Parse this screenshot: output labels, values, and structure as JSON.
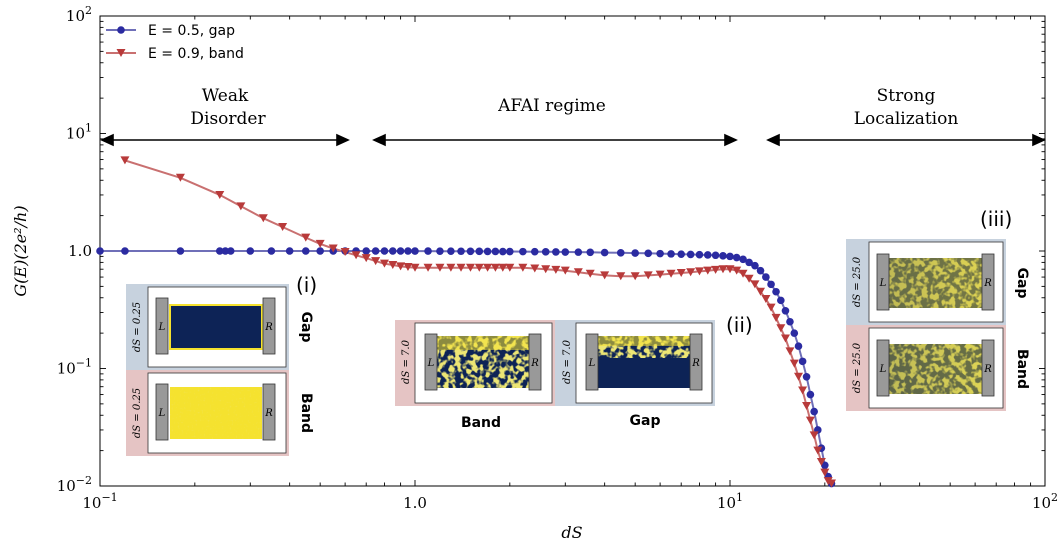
{
  "chart_data": {
    "type": "line",
    "xscale": "log",
    "yscale": "log",
    "xlim": [
      0.1,
      100
    ],
    "ylim": [
      0.01,
      100
    ],
    "xlabel": "dS",
    "ylabel": "G(E)(2e²/h)",
    "grid": false,
    "legend_position": "top-left",
    "x_ticks": [
      {
        "value": 0.1,
        "mantissa": "10",
        "exp": "−1"
      },
      {
        "value": 1,
        "label": "1.0"
      },
      {
        "value": 10,
        "mantissa": "10",
        "exp": "1"
      },
      {
        "value": 100,
        "mantissa": "10",
        "exp": "2"
      }
    ],
    "y_ticks": [
      {
        "value": 0.01,
        "mantissa": "10",
        "exp": "−2"
      },
      {
        "value": 0.1,
        "mantissa": "10",
        "exp": "−1"
      },
      {
        "value": 1,
        "label": "1.0"
      },
      {
        "value": 10,
        "mantissa": "10",
        "exp": "1"
      },
      {
        "value": 100,
        "mantissa": "10",
        "exp": "2"
      }
    ],
    "series": [
      {
        "name": "E = 0.5, gap",
        "color": "#2b2ba1",
        "line_color": "#6f6fb8",
        "marker": "circle",
        "x": [
          0.1,
          0.12,
          0.18,
          0.24,
          0.25,
          0.26,
          0.3,
          0.35,
          0.4,
          0.45,
          0.5,
          0.55,
          0.6,
          0.65,
          0.7,
          0.75,
          0.8,
          0.85,
          0.9,
          0.95,
          1.0,
          1.1,
          1.2,
          1.3,
          1.4,
          1.5,
          1.6,
          1.7,
          1.8,
          1.9,
          2.0,
          2.2,
          2.4,
          2.6,
          2.8,
          3.0,
          3.3,
          3.6,
          4.0,
          4.5,
          5.0,
          5.5,
          6.0,
          6.5,
          7.0,
          7.5,
          8.0,
          8.5,
          9.0,
          9.5,
          10.0,
          10.5,
          11.0,
          11.5,
          12.0,
          12.5,
          13.0,
          13.5,
          14.0,
          14.5,
          15.0,
          15.5,
          16.0,
          16.5,
          17.0,
          17.5,
          18.0,
          18.5,
          19.0,
          19.5,
          20.0,
          20.5,
          21.0
        ],
        "y": [
          1.0,
          1.0,
          1.0,
          1.0,
          1.0,
          1.0,
          1.0,
          1.0,
          1.0,
          1.0,
          1.0,
          1.0,
          1.0,
          1.0,
          1.0,
          1.0,
          1.0,
          1.0,
          1.0,
          1.0,
          0.999,
          0.998,
          0.997,
          0.996,
          0.995,
          0.994,
          0.993,
          0.992,
          0.991,
          0.99,
          0.99,
          0.988,
          0.986,
          0.984,
          0.982,
          0.98,
          0.978,
          0.975,
          0.97,
          0.965,
          0.96,
          0.955,
          0.95,
          0.945,
          0.94,
          0.935,
          0.93,
          0.925,
          0.92,
          0.91,
          0.9,
          0.88,
          0.85,
          0.8,
          0.75,
          0.68,
          0.6,
          0.52,
          0.45,
          0.38,
          0.31,
          0.25,
          0.2,
          0.155,
          0.115,
          0.085,
          0.06,
          0.043,
          0.03,
          0.021,
          0.015,
          0.012,
          0.0105
        ]
      },
      {
        "name": "E = 0.9, band",
        "color": "#b83a3a",
        "line_color": "#c97070",
        "marker": "triangle-down",
        "x": [
          0.12,
          0.18,
          0.24,
          0.28,
          0.33,
          0.38,
          0.45,
          0.5,
          0.55,
          0.6,
          0.65,
          0.7,
          0.75,
          0.8,
          0.85,
          0.9,
          0.95,
          1.0,
          1.1,
          1.2,
          1.3,
          1.4,
          1.5,
          1.6,
          1.7,
          1.8,
          1.9,
          2.0,
          2.2,
          2.4,
          2.6,
          2.8,
          3.0,
          3.3,
          3.6,
          4.0,
          4.5,
          5.0,
          5.5,
          6.0,
          6.5,
          7.0,
          7.5,
          8.0,
          8.5,
          9.0,
          9.5,
          10.0,
          10.5,
          11.0,
          11.5,
          12.0,
          12.5,
          13.0,
          13.5,
          14.0,
          14.5,
          15.0,
          15.5,
          16.0,
          16.5,
          17.0,
          17.5,
          18.0,
          18.5,
          19.0,
          19.5,
          20.0,
          20.5,
          21.0
        ],
        "y": [
          5.9,
          4.2,
          3.0,
          2.4,
          1.9,
          1.6,
          1.3,
          1.15,
          1.05,
          0.98,
          0.92,
          0.87,
          0.82,
          0.78,
          0.76,
          0.74,
          0.73,
          0.72,
          0.72,
          0.72,
          0.72,
          0.72,
          0.72,
          0.72,
          0.72,
          0.72,
          0.72,
          0.72,
          0.72,
          0.71,
          0.7,
          0.69,
          0.68,
          0.66,
          0.64,
          0.62,
          0.61,
          0.61,
          0.62,
          0.63,
          0.64,
          0.65,
          0.66,
          0.67,
          0.68,
          0.69,
          0.7,
          0.7,
          0.68,
          0.64,
          0.58,
          0.52,
          0.45,
          0.39,
          0.33,
          0.27,
          0.22,
          0.18,
          0.14,
          0.11,
          0.085,
          0.065,
          0.048,
          0.036,
          0.027,
          0.02,
          0.016,
          0.013,
          0.011,
          0.0105
        ]
      }
    ],
    "annotations": [
      {
        "id": "weak",
        "lines": [
          "Weak",
          "Disorder"
        ]
      },
      {
        "id": "afai",
        "lines": [
          "AFAI regime"
        ]
      },
      {
        "id": "strong",
        "lines": [
          "Strong",
          "Localization"
        ]
      }
    ],
    "insets": [
      {
        "id": "i",
        "tag": "(i)",
        "top": {
          "dS": "dS = 0.25",
          "type": "Gap"
        },
        "bottom": {
          "dS": "dS = 0.25",
          "type": "Band"
        }
      },
      {
        "id": "ii",
        "tag": "(ii)",
        "left": {
          "dS": "dS = 7.0",
          "type": "Band"
        },
        "right": {
          "dS": "dS = 7.0",
          "type": "Gap"
        }
      },
      {
        "id": "iii",
        "tag": "(iii)",
        "top": {
          "dS": "dS = 25.0",
          "type": "Gap"
        },
        "bottom": {
          "dS": "dS = 25.0",
          "type": "Band"
        }
      }
    ],
    "lead_labels": {
      "left": "L",
      "right": "R"
    }
  },
  "colors": {
    "gap_frame": "#c7d2de",
    "band_frame": "#e5c4c4",
    "sample_dark": "#0d2356",
    "sample_yellow": "#f5e22f",
    "lead": "#999999"
  }
}
